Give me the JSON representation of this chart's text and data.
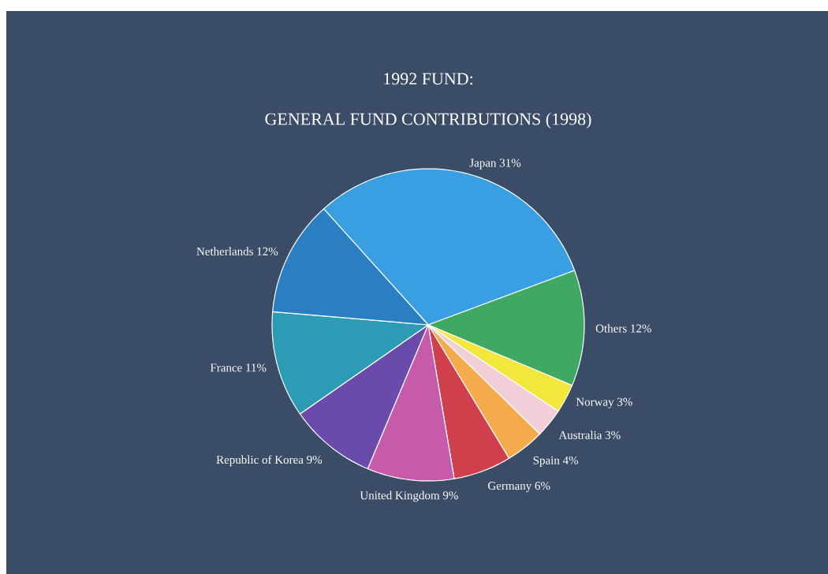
{
  "chart_data": {
    "type": "pie",
    "title": "1992 FUND:",
    "subtitle": "GENERAL FUND CONTRIBUTIONS (1998)",
    "categories": [
      "Japan",
      "Others",
      "Norway",
      "Australia",
      "Spain",
      "Germany",
      "United Kingdom",
      "Republic of Korea",
      "France",
      "Netherlands"
    ],
    "values": [
      31,
      12,
      3,
      3,
      4,
      6,
      9,
      9,
      11,
      12
    ],
    "value_labels": [
      "31%",
      "12%",
      "3%",
      "3%",
      "4%",
      "6%",
      "9%",
      "9%",
      "11%",
      "12%"
    ],
    "colors": [
      "#3a9fe2",
      "#3fa862",
      "#f3e63c",
      "#f2cfd8",
      "#f5aa4c",
      "#cf404c",
      "#c65aab",
      "#6a4bab",
      "#2b9bb6",
      "#2a7ec2"
    ]
  }
}
